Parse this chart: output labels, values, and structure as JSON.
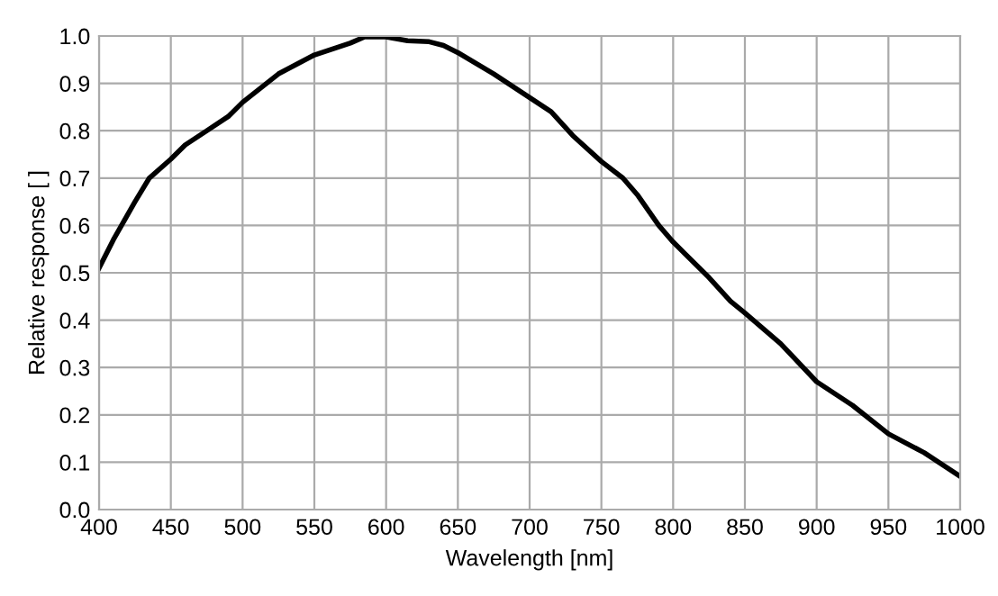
{
  "chart_data": {
    "type": "line",
    "xlabel": "Wavelength [nm]",
    "ylabel": "Relative response [ ]",
    "series": [
      {
        "color": "#000000",
        "x": [
          400,
          410,
          425,
          435,
          450,
          460,
          475,
          490,
          500,
          525,
          550,
          575,
          585,
          600,
          615,
          630,
          640,
          650,
          675,
          700,
          715,
          730,
          750,
          765,
          775,
          790,
          800,
          825,
          840,
          850,
          875,
          900,
          925,
          950,
          975,
          1000
        ],
        "values": [
          0.51,
          0.57,
          0.65,
          0.7,
          0.74,
          0.77,
          0.8,
          0.83,
          0.86,
          0.92,
          0.96,
          0.985,
          0.998,
          0.998,
          0.99,
          0.988,
          0.98,
          0.965,
          0.92,
          0.87,
          0.84,
          0.79,
          0.735,
          0.7,
          0.665,
          0.6,
          0.565,
          0.49,
          0.44,
          0.415,
          0.35,
          0.27,
          0.22,
          0.16,
          0.12,
          0.07
        ]
      }
    ],
    "xlim": [
      400,
      1000
    ],
    "xticks": [
      400,
      450,
      500,
      550,
      600,
      650,
      700,
      750,
      800,
      850,
      900,
      950,
      1000
    ],
    "ylim": [
      0.0,
      1.0
    ],
    "yticks": [
      {
        "value": 0,
        "label": "0.0"
      },
      {
        "value": 0.1,
        "label": "0.1"
      },
      {
        "value": 0.2,
        "label": "0.2"
      },
      {
        "value": 0.3,
        "label": "0.3"
      },
      {
        "value": 0.4,
        "label": "0.4"
      },
      {
        "value": 0.5,
        "label": "0.5"
      },
      {
        "value": 0.6,
        "label": "0.6"
      },
      {
        "value": 0.7,
        "label": "0.7"
      },
      {
        "value": 0.8,
        "label": "0.8"
      },
      {
        "value": 0.9,
        "label": "0.9"
      },
      {
        "value": 1.0,
        "label": "1.0"
      }
    ],
    "grid": true,
    "legend": false,
    "marker": "none",
    "line_style": "solid"
  }
}
